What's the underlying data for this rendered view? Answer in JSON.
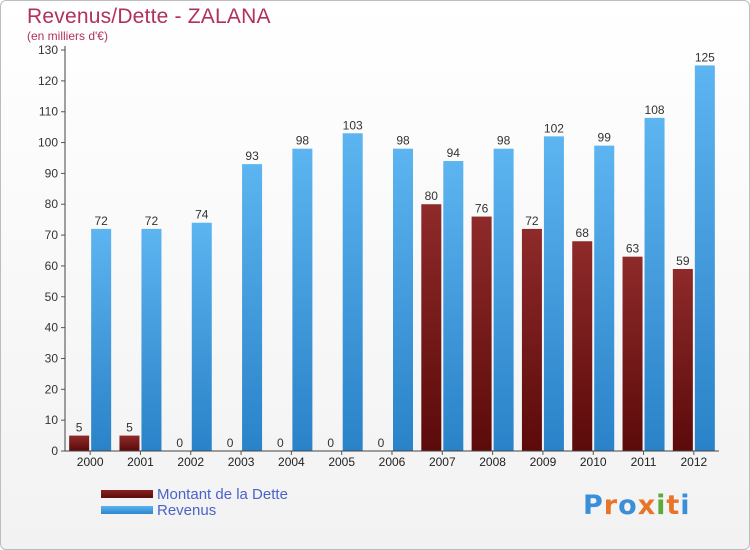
{
  "title": "Revenus/Dette - ZALANA",
  "subtitle": "(en milliers d'€)",
  "chart_data": {
    "type": "bar",
    "categories": [
      "2000",
      "2001",
      "2002",
      "2003",
      "2004",
      "2005",
      "2006",
      "2007",
      "2008",
      "2009",
      "2010",
      "2011",
      "2012"
    ],
    "series": [
      {
        "name": "Montant de la Dette",
        "values": [
          5,
          5,
          0,
          0,
          0,
          0,
          0,
          80,
          76,
          72,
          68,
          63,
          59
        ],
        "color": "#6e1414"
      },
      {
        "name": "Revenus",
        "values": [
          72,
          72,
          74,
          93,
          98,
          103,
          98,
          94,
          98,
          102,
          99,
          108,
          125
        ],
        "color": "#3d9ce0"
      }
    ],
    "ylim": [
      0,
      130
    ],
    "yticks": [
      0,
      10,
      20,
      30,
      40,
      50,
      60,
      70,
      80,
      90,
      100,
      110,
      120,
      130
    ],
    "grid": false,
    "legend_position": "bottom-left"
  },
  "legend": {
    "debt_label": "Montant de la Dette",
    "revenue_label": "Revenus"
  },
  "brand": {
    "letters": [
      "P",
      "r",
      "o",
      "x",
      "i",
      "t",
      "i"
    ],
    "colors": [
      "#3a8fd8",
      "#e8742a",
      "#3a8fd8",
      "#e8742a",
      "#5aaa3c",
      "#e8742a",
      "#3a8fd8"
    ]
  }
}
